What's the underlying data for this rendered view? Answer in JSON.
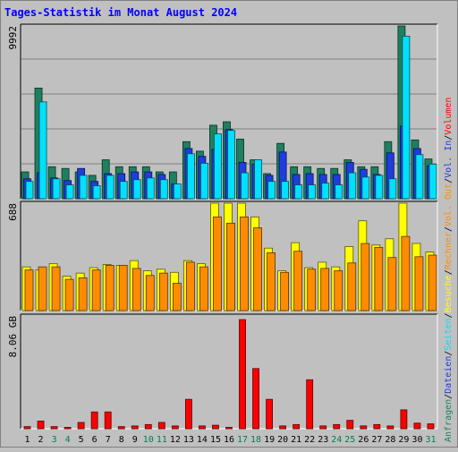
{
  "chart_data": {
    "type": "bar",
    "title": "Tages-Statistik im Monat August 2024",
    "days": [
      "1",
      "2",
      "3",
      "4",
      "5",
      "6",
      "7",
      "8",
      "9",
      "10",
      "11",
      "12",
      "13",
      "14",
      "15",
      "16",
      "17",
      "18",
      "19",
      "20",
      "21",
      "22",
      "23",
      "24",
      "25",
      "26",
      "27",
      "28",
      "29",
      "30",
      "31"
    ],
    "weekend_days": [
      "3",
      "4",
      "10",
      "11",
      "17",
      "18",
      "24",
      "25",
      "31"
    ],
    "panels": [
      {
        "id": "hits",
        "max_label": "9992",
        "max": 9992,
        "series": [
          {
            "name": "Anfragen",
            "color": "#1e8060",
            "values": [
              1550,
              6400,
              1850,
              1750,
              1550,
              1350,
              2250,
              1850,
              1850,
              1850,
              1550,
              1550,
              3300,
              2750,
              4250,
              4450,
              3450,
              2250,
              1450,
              3200,
              1850,
              1850,
              1750,
              1750,
              2250,
              1850,
              1850,
              3300,
              10000,
              3400,
              2300
            ]
          },
          {
            "name": "Dateien",
            "color": "#1e3ce0",
            "values": [
              1150,
              1500,
              1200,
              1050,
              1750,
              1000,
              1450,
              1450,
              1550,
              1550,
              1400,
              850,
              2900,
              2450,
              2850,
              4000,
              2100,
              2000,
              1350,
              2700,
              1400,
              1450,
              1400,
              1400,
              2100,
              1700,
              1400,
              2650,
              4200,
              2900,
              1900
            ]
          },
          {
            "name": "Seiten",
            "color": "#00e0ff",
            "values": [
              1000,
              5600,
              1150,
              800,
              1350,
              750,
              1350,
              1000,
              1100,
              1200,
              1100,
              850,
              2600,
              2050,
              3750,
              3950,
              1500,
              2250,
              1000,
              1000,
              800,
              800,
              900,
              800,
              1500,
              1250,
              1350,
              1150,
              9400,
              2550,
              2000
            ]
          }
        ]
      },
      {
        "id": "visits",
        "max_label": "688",
        "max": 688,
        "series": [
          {
            "name": "Besuche",
            "color": "#ffff00",
            "values": [
              280,
              260,
              300,
              220,
              240,
              275,
              295,
              290,
              320,
              255,
              265,
              245,
              320,
              300,
              710,
              700,
              710,
              600,
              400,
              255,
              435,
              275,
              310,
              280,
              410,
              575,
              420,
              460,
              700,
              430,
              375
            ]
          },
          {
            "name": "Rechner",
            "color": "#ff8c00",
            "values": [
              260,
              280,
              280,
              200,
              210,
              260,
              290,
              290,
              270,
              225,
              240,
              175,
              310,
              280,
              600,
              560,
              600,
              530,
              370,
              245,
              380,
              265,
              270,
              255,
              305,
              430,
              405,
              340,
              475,
              345,
              355
            ]
          }
        ]
      },
      {
        "id": "volume",
        "max_label": "8.06 GB",
        "max": 8.06,
        "series": [
          {
            "name": "Volumen",
            "color": "#ff0000",
            "values": [
              0.15,
              0.55,
              0.15,
              0.1,
              0.45,
              1.2,
              1.2,
              0.15,
              0.2,
              0.3,
              0.45,
              0.2,
              2.1,
              0.2,
              0.25,
              0.1,
              7.8,
              4.3,
              2.1,
              0.2,
              0.3,
              3.5,
              0.2,
              0.3,
              0.6,
              0.2,
              0.3,
              0.2,
              1.35,
              0.4,
              0.35
            ]
          }
        ]
      }
    ],
    "legend": [
      {
        "text": "Anfragen",
        "color": "#1e8060"
      },
      {
        "text": "/",
        "color": "#000000"
      },
      {
        "text": "Dateien",
        "color": "#1e3ce0"
      },
      {
        "text": "/",
        "color": "#000000"
      },
      {
        "text": "Seiten",
        "color": "#00e0ff"
      },
      {
        "text": "/",
        "color": "#000000"
      },
      {
        "text": "Besuche",
        "color": "#ffff00"
      },
      {
        "text": "/",
        "color": "#000000"
      },
      {
        "text": "Rechner",
        "color": "#ff8c00"
      },
      {
        "text": "/",
        "color": "#000000"
      },
      {
        "text": "Vol. Out",
        "color": "#ff8c00"
      },
      {
        "text": "/",
        "color": "#000000"
      },
      {
        "text": "Vol. In",
        "color": "#1e3ce0"
      },
      {
        "text": "/",
        "color": "#000000"
      },
      {
        "text": "Volumen",
        "color": "#ff0000"
      }
    ],
    "background_color": "#c0c0c0",
    "title_color": "#0000ff",
    "weekday_color": "#000000",
    "weekend_color": "#00804c"
  }
}
